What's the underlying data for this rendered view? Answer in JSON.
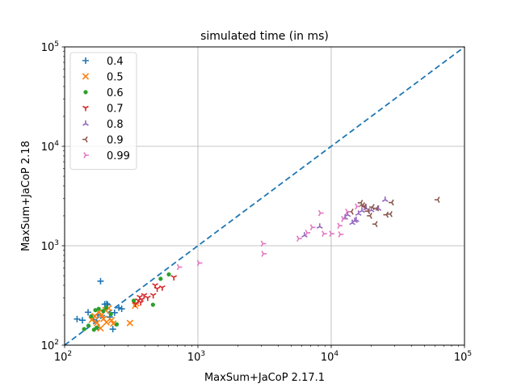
{
  "chart_data": {
    "type": "scatter",
    "title": "simulated time (in ms)",
    "xlabel": "MaxSum+JaCoP 2.17.1",
    "ylabel": "MaxSum+JaCoP 2.18",
    "xscale": "log",
    "yscale": "log",
    "xlim": [
      100,
      100000
    ],
    "ylim": [
      100,
      100000
    ],
    "grid": true,
    "legend_position": "top-left",
    "xticks": [
      {
        "value": 100,
        "base": "10",
        "exp": "2"
      },
      {
        "value": 1000,
        "base": "10",
        "exp": "3"
      },
      {
        "value": 10000,
        "base": "10",
        "exp": "4"
      },
      {
        "value": 100000,
        "base": "10",
        "exp": "5"
      }
    ],
    "yticks": [
      {
        "value": 100,
        "base": "10",
        "exp": "2"
      },
      {
        "value": 1000,
        "base": "10",
        "exp": "3"
      },
      {
        "value": 10000,
        "base": "10",
        "exp": "4"
      },
      {
        "value": 100000,
        "base": "10",
        "exp": "5"
      }
    ],
    "diagonal": {
      "style": "dashed",
      "color": "#1f77b4",
      "from": [
        100,
        100
      ],
      "to": [
        100000,
        100000
      ]
    },
    "series": [
      {
        "name": "0.4",
        "marker": "plus",
        "color": "#1f77b4",
        "points": [
          [
            124,
            183
          ],
          [
            136,
            178
          ],
          [
            150,
            214
          ],
          [
            166,
            180
          ],
          [
            178,
            201
          ],
          [
            186,
            440
          ],
          [
            200,
            258
          ],
          [
            210,
            255
          ],
          [
            218,
            192
          ],
          [
            230,
            145
          ],
          [
            237,
            212
          ],
          [
            255,
            238
          ],
          [
            268,
            232
          ],
          [
            207,
            260
          ],
          [
            178,
            150
          ]
        ]
      },
      {
        "name": "0.5",
        "marker": "x",
        "color": "#ff7f0e",
        "points": [
          [
            160,
            180
          ],
          [
            168,
            196
          ],
          [
            175,
            168
          ],
          [
            180,
            213
          ],
          [
            190,
            202
          ],
          [
            196,
            184
          ],
          [
            206,
            170
          ],
          [
            214,
            235
          ],
          [
            225,
            178
          ],
          [
            232,
            165
          ],
          [
            186,
            148
          ],
          [
            309,
            167
          ],
          [
            338,
            250
          ],
          [
            345,
            263
          ],
          [
            203,
            225
          ]
        ]
      },
      {
        "name": "0.6",
        "marker": "dot",
        "color": "#2ca02c",
        "points": [
          [
            140,
            145
          ],
          [
            151,
            157
          ],
          [
            158,
            195
          ],
          [
            166,
            143
          ],
          [
            174,
            150
          ],
          [
            180,
            232
          ],
          [
            195,
            220
          ],
          [
            205,
            238
          ],
          [
            222,
            205
          ],
          [
            246,
            162
          ],
          [
            330,
            280
          ],
          [
            460,
            255
          ],
          [
            525,
            465
          ],
          [
            605,
            515
          ],
          [
            170,
            225
          ]
        ]
      },
      {
        "name": "0.7",
        "marker": "tri_down",
        "color": "#d62728",
        "points": [
          [
            340,
            260
          ],
          [
            356,
            282
          ],
          [
            366,
            305
          ],
          [
            380,
            288
          ],
          [
            395,
            318
          ],
          [
            462,
            318
          ],
          [
            478,
            400
          ],
          [
            495,
            370
          ],
          [
            540,
            380
          ],
          [
            660,
            482
          ],
          [
            372,
            270
          ],
          [
            420,
            300
          ]
        ]
      },
      {
        "name": "0.8",
        "marker": "tri_up",
        "color": "#9467bd",
        "points": [
          [
            6300,
            1270
          ],
          [
            8200,
            1560
          ],
          [
            12700,
            1920
          ],
          [
            13300,
            2050
          ],
          [
            14400,
            1700
          ],
          [
            15000,
            1780
          ],
          [
            16000,
            2100
          ],
          [
            17000,
            2250
          ],
          [
            18300,
            2380
          ],
          [
            20000,
            2280
          ],
          [
            22600,
            2360
          ],
          [
            25400,
            2900
          ],
          [
            15400,
            1820
          ]
        ]
      },
      {
        "name": "0.9",
        "marker": "tri_left",
        "color": "#8c564b",
        "points": [
          [
            14200,
            2200
          ],
          [
            16700,
            2700
          ],
          [
            17800,
            2480
          ],
          [
            18900,
            2230
          ],
          [
            19600,
            2000
          ],
          [
            20400,
            2450
          ],
          [
            21500,
            1650
          ],
          [
            22000,
            2380
          ],
          [
            26000,
            2050
          ],
          [
            27800,
            2080
          ],
          [
            28500,
            2720
          ],
          [
            63000,
            2900
          ],
          [
            17300,
            2550
          ]
        ]
      },
      {
        "name": "0.99",
        "marker": "tri_right",
        "color": "#e377c2",
        "points": [
          [
            720,
            610
          ],
          [
            1020,
            670
          ],
          [
            3070,
            1050
          ],
          [
            3100,
            830
          ],
          [
            5700,
            1180
          ],
          [
            6600,
            1350
          ],
          [
            7200,
            1530
          ],
          [
            8300,
            2130
          ],
          [
            8800,
            1320
          ],
          [
            10000,
            1320
          ],
          [
            11500,
            1590
          ],
          [
            12300,
            1860
          ],
          [
            13200,
            2200
          ],
          [
            15600,
            2480
          ],
          [
            11700,
            1300
          ]
        ]
      }
    ]
  }
}
